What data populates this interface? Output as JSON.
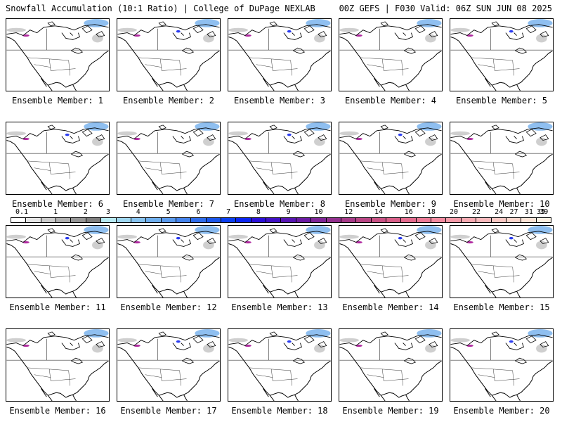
{
  "header": {
    "left_title": "Snowfall Accumulation (10:1 Ratio) | College of DuPage NEXLAB",
    "right_title": "00Z GEFS | F030 Valid: 06Z SUN JUN 08 2025"
  },
  "members": [
    "Ensemble Member: 1",
    "Ensemble Member: 2",
    "Ensemble Member: 3",
    "Ensemble Member: 4",
    "Ensemble Member: 5",
    "Ensemble Member: 6",
    "Ensemble Member: 7",
    "Ensemble Member: 8",
    "Ensemble Member: 9",
    "Ensemble Member: 10",
    "Ensemble Member: 11",
    "Ensemble Member: 12",
    "Ensemble Member: 13",
    "Ensemble Member: 14",
    "Ensemble Member: 15",
    "Ensemble Member: 16",
    "Ensemble Member: 17",
    "Ensemble Member: 18",
    "Ensemble Member: 19",
    "Ensemble Member: 20"
  ],
  "colorbar": {
    "labels": [
      "0.1",
      "1",
      "2",
      "3",
      "4",
      "5",
      "6",
      "7",
      "8",
      "9",
      "10",
      "12",
      "14",
      "16",
      "18",
      "20",
      "22",
      "24",
      "27",
      "31",
      "35",
      "39"
    ],
    "colors": [
      "#ffffff",
      "#e6e6e6",
      "#cccccc",
      "#b0b0b0",
      "#969696",
      "#7e7e7e",
      "#b7eaf2",
      "#9fd7f0",
      "#87c3ef",
      "#6fafee",
      "#5a9aed",
      "#4483ec",
      "#2e6ceb",
      "#1a55ea",
      "#0a3ef0",
      "#0a24f0",
      "#2a0fd8",
      "#4010c4",
      "#5614b2",
      "#6a1aa2",
      "#7e2496",
      "#922f8e",
      "#a63a88",
      "#b84584",
      "#c85184",
      "#d85e88",
      "#e46b8e",
      "#ec7a96",
      "#f28aa0",
      "#f59aa8",
      "#f7aab2",
      "#f9b9bc",
      "#fbc8c4",
      "#fcd6cc",
      "#fde3d6",
      "#fef0e3"
    ]
  },
  "colors": {
    "coastline": "#000000",
    "boundaries": "#000000",
    "light_snow": "#cfcfcf",
    "moderate_snow": "#8fbff0",
    "heavy_snow": "#2b3cf0",
    "very_heavy_snow": "#b02aa0"
  }
}
